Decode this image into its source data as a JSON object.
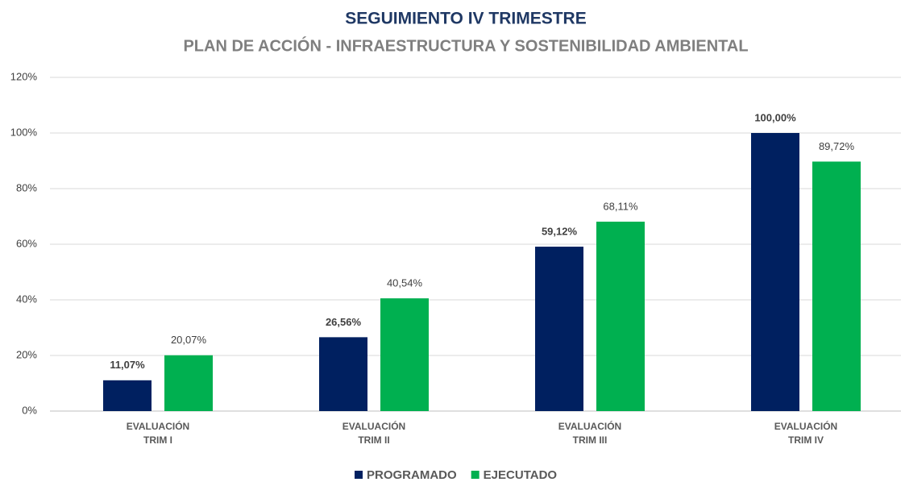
{
  "chart_data": {
    "type": "bar",
    "title": "SEGUIMIENTO IV TRIMESTRE",
    "subtitle": "PLAN DE ACCIÓN - INFRAESTRUCTURA Y SOSTENIBILIDAD AMBIENTAL",
    "categories": [
      [
        "EVALUACIÓN",
        "TRIM I"
      ],
      [
        "EVALUACIÓN",
        "TRIM II"
      ],
      [
        "EVALUACIÓN",
        "TRIM III"
      ],
      [
        "EVALUACIÓN",
        "TRIM IV"
      ]
    ],
    "series": [
      {
        "name": "PROGRAMADO",
        "color": "#002060",
        "values": [
          11.07,
          26.56,
          59.12,
          100
        ],
        "value_labels": [
          "11,07%",
          "26,56%",
          "59,12%",
          "100,00%"
        ]
      },
      {
        "name": "EJECUTADO",
        "color": "#00b050",
        "values": [
          20.07,
          40.54,
          68.11,
          89.72
        ],
        "value_labels": [
          "20,07%",
          "40,54%",
          "68,11%",
          "89,72%"
        ]
      }
    ],
    "ylim": [
      0,
      120
    ],
    "yticks": [
      {
        "value": 0,
        "label": "0%"
      },
      {
        "value": 20,
        "label": "20%"
      },
      {
        "value": 40,
        "label": "40%"
      },
      {
        "value": 60,
        "label": "60%"
      },
      {
        "value": 80,
        "label": "80%"
      },
      {
        "value": 100,
        "label": "100%"
      },
      {
        "value": 120,
        "label": "120%"
      }
    ],
    "grid": true,
    "legend": "bottom"
  }
}
